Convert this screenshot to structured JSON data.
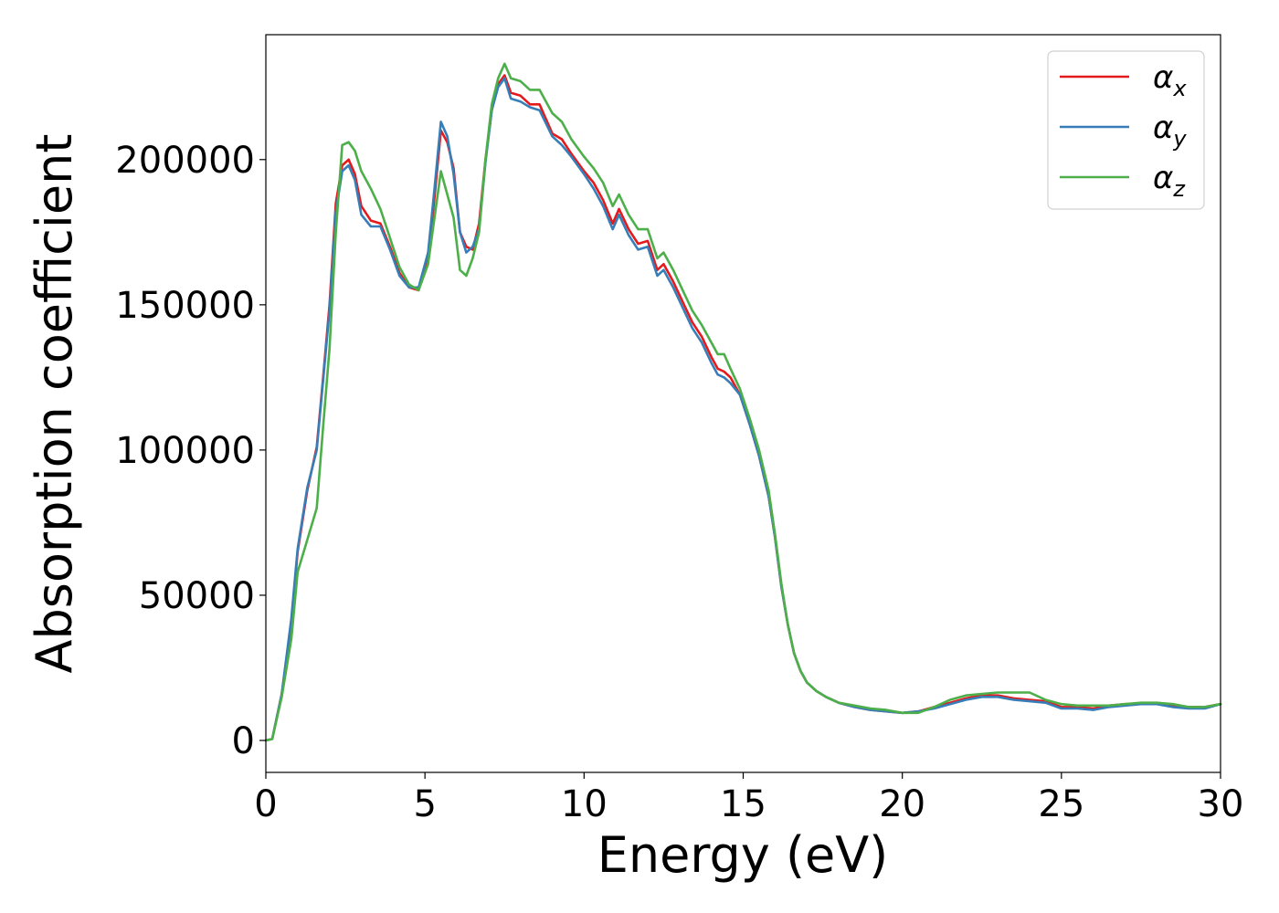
{
  "chart_data": {
    "type": "line",
    "title": "",
    "xlabel": "Energy (eV)",
    "ylabel": "Absorption coefficient",
    "xlim": [
      0,
      30
    ],
    "ylim": [
      -11000,
      243000
    ],
    "xticks": [
      0,
      5,
      10,
      15,
      20,
      25,
      30
    ],
    "yticks": [
      0,
      50000,
      100000,
      150000,
      200000
    ],
    "grid": false,
    "legend_position": "top-right",
    "series": [
      {
        "name": "α_x",
        "label_base": "α",
        "label_sub": "x",
        "color": "#e41a1c",
        "x": [
          0,
          0.2,
          0.5,
          0.8,
          1.0,
          1.3,
          1.6,
          1.8,
          2.0,
          2.2,
          2.4,
          2.6,
          2.8,
          3.0,
          3.3,
          3.6,
          3.9,
          4.2,
          4.5,
          4.8,
          5.1,
          5.3,
          5.5,
          5.7,
          5.9,
          6.1,
          6.3,
          6.5,
          6.7,
          6.9,
          7.1,
          7.3,
          7.5,
          7.7,
          8.0,
          8.3,
          8.6,
          9.0,
          9.3,
          9.6,
          10.0,
          10.3,
          10.6,
          10.9,
          11.1,
          11.4,
          11.7,
          12.0,
          12.3,
          12.5,
          12.8,
          13.1,
          13.4,
          13.7,
          14.0,
          14.2,
          14.4,
          14.6,
          14.9,
          15.2,
          15.5,
          15.8,
          16.0,
          16.2,
          16.4,
          16.6,
          16.8,
          17.0,
          17.3,
          17.6,
          18.0,
          18.5,
          19.0,
          19.5,
          20.0,
          20.5,
          21.0,
          21.5,
          22.0,
          22.5,
          23.0,
          23.5,
          24.0,
          24.5,
          25.0,
          25.5,
          26.0,
          26.5,
          27.0,
          27.5,
          28.0,
          28.5,
          29.0,
          29.5,
          30.0
        ],
        "y": [
          0,
          500,
          16000,
          40000,
          65000,
          86000,
          101000,
          125000,
          150000,
          185000,
          198000,
          200000,
          195000,
          184000,
          179000,
          178000,
          170000,
          161000,
          156000,
          155000,
          166000,
          187000,
          210000,
          206000,
          197000,
          175000,
          170000,
          169000,
          178000,
          200000,
          217000,
          226000,
          229000,
          223000,
          222000,
          219000,
          219000,
          209000,
          207000,
          202000,
          196000,
          192000,
          186000,
          178000,
          183000,
          176000,
          171000,
          172000,
          162000,
          164000,
          158000,
          151000,
          144000,
          139000,
          132000,
          128000,
          127000,
          125000,
          119000,
          109000,
          98000,
          84000,
          70000,
          53000,
          40000,
          30000,
          24000,
          20000,
          17000,
          15000,
          13000,
          11500,
          10500,
          10000,
          9500,
          10000,
          11500,
          13000,
          14500,
          15500,
          15500,
          14500,
          14000,
          13500,
          11500,
          11500,
          11000,
          12000,
          12500,
          12500,
          12500,
          12000,
          11500,
          11500,
          12500
        ]
      },
      {
        "name": "α_y",
        "label_base": "α",
        "label_sub": "y",
        "color": "#377eb8",
        "x": [
          0,
          0.2,
          0.5,
          0.8,
          1.0,
          1.3,
          1.6,
          1.8,
          2.0,
          2.2,
          2.4,
          2.6,
          2.8,
          3.0,
          3.3,
          3.6,
          3.9,
          4.2,
          4.5,
          4.8,
          5.1,
          5.3,
          5.5,
          5.7,
          5.9,
          6.1,
          6.3,
          6.5,
          6.7,
          6.9,
          7.1,
          7.3,
          7.5,
          7.7,
          8.0,
          8.3,
          8.6,
          9.0,
          9.3,
          9.6,
          10.0,
          10.3,
          10.6,
          10.9,
          11.1,
          11.4,
          11.7,
          12.0,
          12.3,
          12.5,
          12.8,
          13.1,
          13.4,
          13.7,
          14.0,
          14.2,
          14.4,
          14.6,
          14.9,
          15.2,
          15.5,
          15.8,
          16.0,
          16.2,
          16.4,
          16.6,
          16.8,
          17.0,
          17.3,
          17.6,
          18.0,
          18.5,
          19.0,
          19.5,
          20.0,
          20.5,
          21.0,
          21.5,
          22.0,
          22.5,
          23.0,
          23.5,
          24.0,
          24.5,
          25.0,
          25.5,
          26.0,
          26.5,
          27.0,
          27.5,
          28.0,
          28.5,
          29.0,
          29.5,
          30.0
        ],
        "y": [
          0,
          500,
          16000,
          42000,
          66000,
          87000,
          100000,
          124000,
          148000,
          182000,
          196000,
          198000,
          193000,
          181000,
          177000,
          177000,
          169000,
          160000,
          156000,
          156000,
          168000,
          190000,
          213000,
          208000,
          195000,
          175000,
          168000,
          170000,
          176000,
          199000,
          217000,
          225000,
          228000,
          221000,
          220000,
          218000,
          217000,
          208000,
          205000,
          201000,
          195000,
          190000,
          184000,
          176000,
          181000,
          174000,
          169000,
          170000,
          160000,
          162000,
          156000,
          149000,
          142000,
          137000,
          130000,
          126000,
          125000,
          123000,
          119000,
          109000,
          98000,
          84000,
          70000,
          53000,
          40000,
          30000,
          24000,
          20000,
          17000,
          15000,
          13000,
          11500,
          10500,
          10000,
          9500,
          10000,
          11000,
          12500,
          14000,
          15000,
          15000,
          14000,
          13500,
          13000,
          11000,
          11000,
          10500,
          11500,
          12000,
          12500,
          12500,
          11500,
          11000,
          11000,
          12500
        ]
      },
      {
        "name": "α_z",
        "label_base": "α",
        "label_sub": "z",
        "color": "#4daf4a",
        "x": [
          0,
          0.2,
          0.5,
          0.8,
          1.0,
          1.3,
          1.6,
          1.8,
          2.0,
          2.2,
          2.4,
          2.6,
          2.8,
          3.0,
          3.3,
          3.6,
          3.9,
          4.2,
          4.5,
          4.8,
          5.1,
          5.3,
          5.5,
          5.7,
          5.9,
          6.1,
          6.3,
          6.5,
          6.7,
          6.9,
          7.1,
          7.3,
          7.5,
          7.7,
          8.0,
          8.3,
          8.6,
          9.0,
          9.3,
          9.6,
          10.0,
          10.3,
          10.6,
          10.9,
          11.1,
          11.4,
          11.7,
          12.0,
          12.3,
          12.5,
          12.8,
          13.1,
          13.4,
          13.7,
          14.0,
          14.2,
          14.4,
          14.6,
          14.9,
          15.2,
          15.5,
          15.8,
          16.0,
          16.2,
          16.4,
          16.6,
          16.8,
          17.0,
          17.3,
          17.6,
          18.0,
          18.5,
          19.0,
          19.5,
          20.0,
          20.5,
          21.0,
          21.5,
          22.0,
          22.5,
          23.0,
          23.5,
          24.0,
          24.5,
          25.0,
          25.5,
          26.0,
          26.5,
          27.0,
          27.5,
          28.0,
          28.5,
          29.0,
          29.5,
          30.0
        ],
        "y": [
          0,
          500,
          15000,
          35000,
          58000,
          69000,
          80000,
          108000,
          135000,
          175000,
          205000,
          206000,
          203000,
          196000,
          190000,
          183000,
          173000,
          163000,
          157000,
          155000,
          164000,
          180000,
          196000,
          188000,
          180000,
          162000,
          160000,
          166000,
          175000,
          200000,
          219000,
          228000,
          233000,
          228000,
          227000,
          224000,
          224000,
          216000,
          213000,
          207000,
          201000,
          197000,
          192000,
          184000,
          188000,
          181000,
          176000,
          176000,
          166000,
          168000,
          162000,
          155000,
          148000,
          143000,
          137000,
          133000,
          133000,
          128000,
          121000,
          111000,
          100000,
          86000,
          71000,
          54000,
          40000,
          30000,
          24000,
          20000,
          17000,
          15000,
          13000,
          12000,
          11000,
          10500,
          9500,
          9500,
          11500,
          14000,
          15500,
          16000,
          16500,
          16500,
          16500,
          14000,
          12500,
          12000,
          12000,
          12000,
          12500,
          13000,
          13000,
          12500,
          11500,
          11500,
          12500
        ]
      }
    ]
  }
}
